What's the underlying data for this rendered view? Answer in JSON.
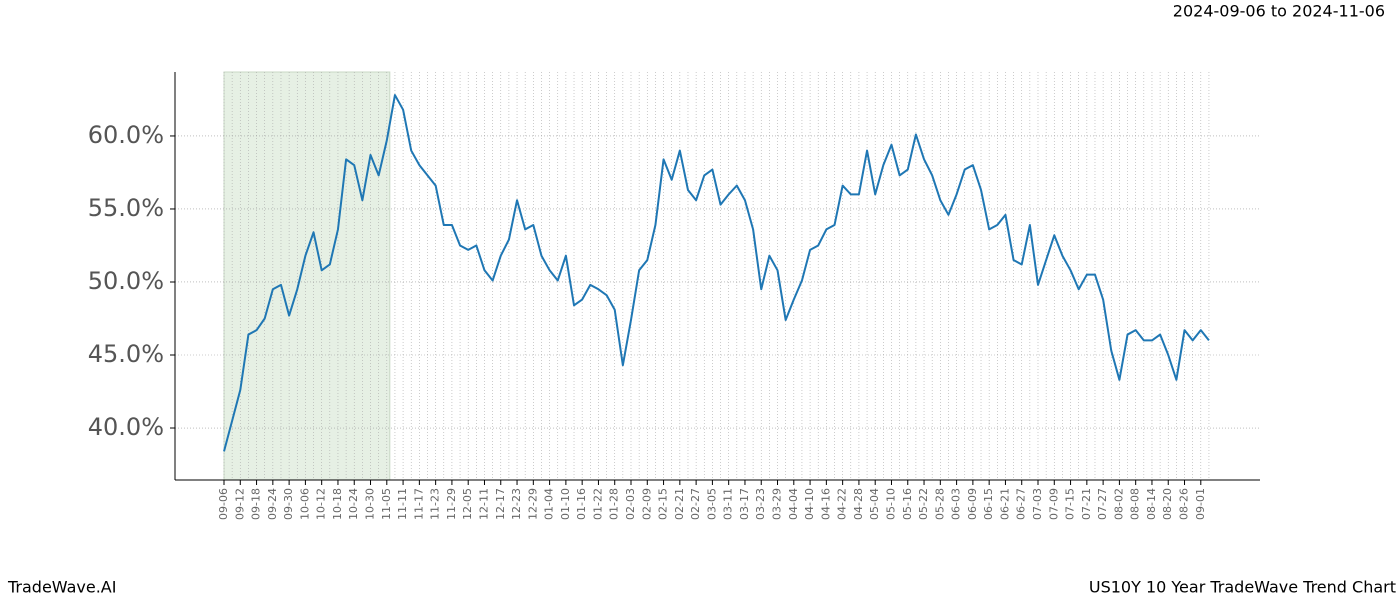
{
  "header": {
    "date_range": "2024-09-06 to 2024-11-06"
  },
  "footer": {
    "brand": "TradeWave.AI",
    "caption": "US10Y 10 Year TradeWave Trend Chart"
  },
  "chart_data": {
    "type": "line",
    "categories": [
      "09-06",
      null,
      "09-12",
      null,
      "09-18",
      null,
      "09-24",
      null,
      "09-30",
      null,
      "10-06",
      null,
      "10-12",
      null,
      "10-18",
      null,
      "10-24",
      null,
      "10-30",
      null,
      "11-05",
      null,
      "11-11",
      null,
      "11-17",
      null,
      "11-23",
      null,
      "11-29",
      null,
      "12-05",
      null,
      "12-11",
      null,
      "12-17",
      null,
      "12-23",
      null,
      "12-29",
      null,
      "01-04",
      null,
      "01-10",
      null,
      "01-16",
      null,
      "01-22",
      null,
      "01-28",
      null,
      "02-03",
      null,
      "02-09",
      null,
      "02-15",
      null,
      "02-21",
      null,
      "02-27",
      null,
      "03-05",
      null,
      "03-11",
      null,
      "03-17",
      null,
      "03-23",
      null,
      "03-29",
      null,
      "04-04",
      null,
      "04-10",
      null,
      "04-16",
      null,
      "04-22",
      null,
      "04-28",
      null,
      "05-04",
      null,
      "05-10",
      null,
      "05-16",
      null,
      "05-22",
      null,
      "05-28",
      null,
      "06-03",
      null,
      "06-09",
      null,
      "06-15",
      null,
      "06-21",
      null,
      "06-27",
      null,
      "07-03",
      null,
      "07-09",
      null,
      "07-15",
      null,
      "07-21",
      null,
      "07-27",
      null,
      "08-02",
      null,
      "08-08",
      null,
      "08-14",
      null,
      "08-20",
      null,
      "08-26",
      null,
      "09-01",
      null
    ],
    "series": [
      {
        "color": "#1f77b4",
        "values": [
          38.4,
          40.5,
          42.6,
          46.4,
          46.7,
          47.5,
          49.5,
          49.8,
          47.7,
          49.5,
          51.8,
          53.4,
          50.8,
          51.2,
          53.6,
          58.4,
          58.0,
          55.6,
          58.7,
          57.3,
          59.7,
          62.8,
          61.8,
          59.0,
          58.0,
          57.3,
          56.6,
          53.9,
          53.9,
          52.5,
          52.2,
          52.5,
          50.8,
          50.1,
          51.8,
          52.9,
          55.6,
          53.6,
          53.9,
          51.8,
          50.8,
          50.1,
          51.8,
          48.4,
          48.8,
          49.8,
          49.5,
          49.1,
          48.1,
          44.3,
          47.4,
          50.8,
          51.5,
          53.9,
          58.4,
          57.0,
          59.0,
          56.3,
          55.6,
          57.3,
          57.7,
          55.3,
          56.0,
          56.6,
          55.6,
          53.6,
          49.5,
          51.8,
          50.8,
          47.4,
          48.8,
          50.1,
          52.2,
          52.5,
          53.6,
          53.9,
          56.6,
          56.0,
          56.0,
          59.0,
          56.0,
          58.0,
          59.4,
          57.3,
          57.7,
          60.1,
          58.4,
          57.3,
          55.6,
          54.6,
          56.0,
          57.7,
          58.0,
          56.3,
          53.6,
          53.9,
          54.6,
          51.5,
          51.2,
          53.9,
          49.8,
          51.5,
          53.2,
          51.8,
          50.8,
          49.5,
          50.5,
          50.5,
          48.8,
          45.3,
          43.3,
          46.4,
          46.7,
          46.0,
          46.0,
          46.4,
          45.0,
          43.3,
          46.7,
          46.0,
          46.7,
          46.0
        ]
      }
    ],
    "ylim": [
      36.44,
      64.38
    ],
    "yticks": [
      {
        "value": 40,
        "label": "40.0%"
      },
      {
        "value": 45,
        "label": "45.0%"
      },
      {
        "value": 50,
        "label": "50.0%"
      },
      {
        "value": 55,
        "label": "55.0%"
      },
      {
        "value": 60,
        "label": "60.0%"
      }
    ],
    "grid": true,
    "highlight": {
      "from": "09-06",
      "to": "11-05",
      "color": "#e6f0e4"
    }
  }
}
